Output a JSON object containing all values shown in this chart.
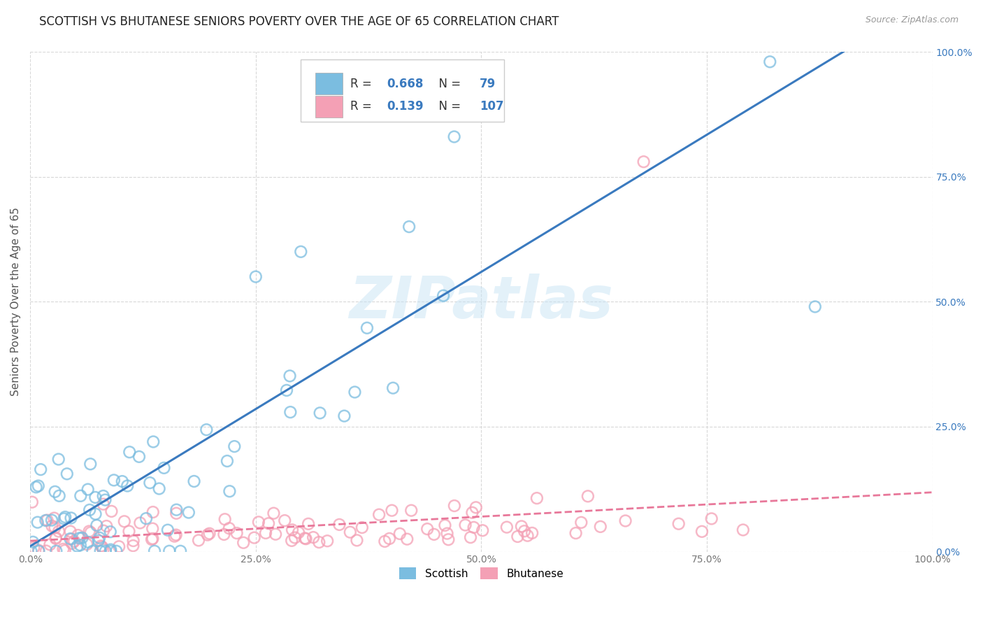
{
  "title": "SCOTTISH VS BHUTANESE SENIORS POVERTY OVER THE AGE OF 65 CORRELATION CHART",
  "source": "Source: ZipAtlas.com",
  "ylabel": "Seniors Poverty Over the Age of 65",
  "xlabel": "",
  "background_color": "#ffffff",
  "watermark_text": "ZIPatlas",
  "scottish_R": 0.668,
  "scottish_N": 79,
  "bhutanese_R": 0.139,
  "bhutanese_N": 107,
  "scottish_color": "#7bbde0",
  "bhutanese_color": "#f4a0b5",
  "scottish_line_color": "#3a7abf",
  "bhutanese_line_color": "#e8789a",
  "legend_label_scottish": "Scottish",
  "legend_label_bhutanese": "Bhutanese",
  "xlim": [
    0,
    1
  ],
  "ylim": [
    0,
    1
  ],
  "xticks": [
    0,
    0.25,
    0.5,
    0.75,
    1.0
  ],
  "yticks": [
    0,
    0.25,
    0.5,
    0.75,
    1.0
  ],
  "xticklabels": [
    "0.0%",
    "25.0%",
    "50.0%",
    "75.0%",
    "100.0%"
  ],
  "right_yticklabels": [
    "0.0%",
    "25.0%",
    "50.0%",
    "75.0%",
    "100.0%"
  ],
  "title_fontsize": 12,
  "axis_label_fontsize": 11,
  "tick_fontsize": 10,
  "R_color": "#3a7abf",
  "N_color": "#3a7abf"
}
